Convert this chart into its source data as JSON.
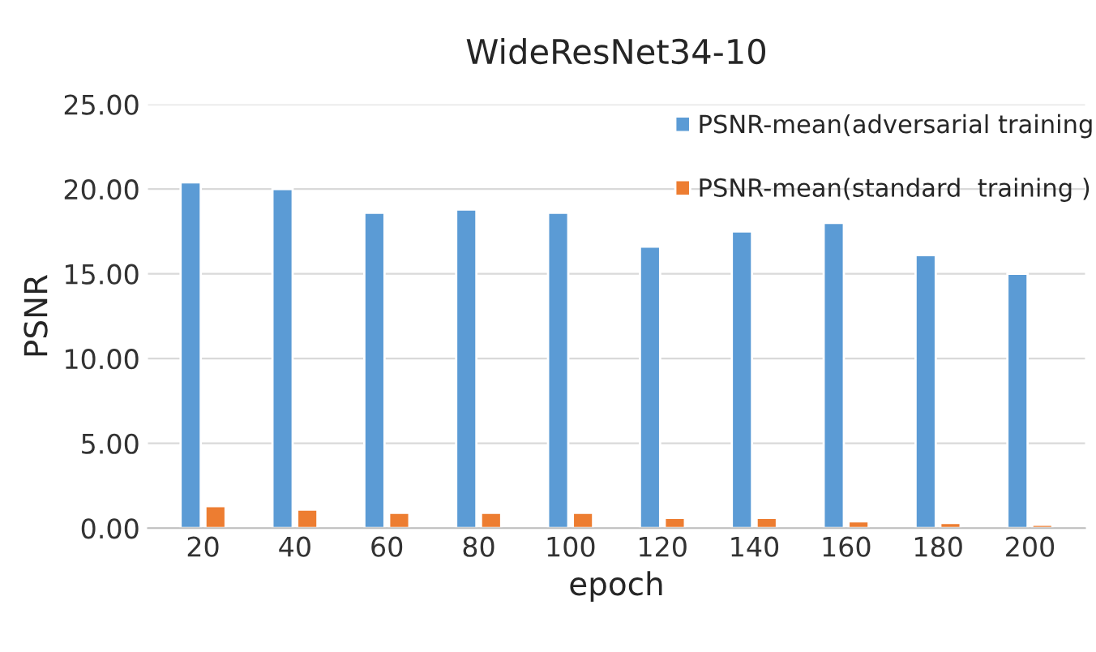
{
  "chart_data": {
    "type": "bar",
    "title": "WideResNet34-10",
    "xlabel": "epoch",
    "ylabel": "PSNR",
    "categories": [
      "20",
      "40",
      "60",
      "80",
      "100",
      "120",
      "140",
      "160",
      "180",
      "200"
    ],
    "series": [
      {
        "name": "PSNR-mean(adversarial training",
        "color": "#5b9bd5",
        "values": [
          20.4,
          20.0,
          18.6,
          18.8,
          18.6,
          16.6,
          17.5,
          18.0,
          16.1,
          15.0
        ]
      },
      {
        "name": "PSNR-mean(standard  training )",
        "color": "#ed7d31",
        "values": [
          1.3,
          1.1,
          0.9,
          0.9,
          0.9,
          0.6,
          0.6,
          0.4,
          0.3,
          0.2
        ]
      }
    ],
    "ylim": [
      0,
      25
    ],
    "yticks": [
      {
        "value": 0,
        "label": "0.00"
      },
      {
        "value": 5,
        "label": "5.00"
      },
      {
        "value": 10,
        "label": "10.00"
      },
      {
        "value": 15,
        "label": "15.00"
      },
      {
        "value": 20,
        "label": "20.00"
      },
      {
        "value": 25,
        "label": "25.00"
      }
    ],
    "grid": "y",
    "legend": "top right"
  }
}
